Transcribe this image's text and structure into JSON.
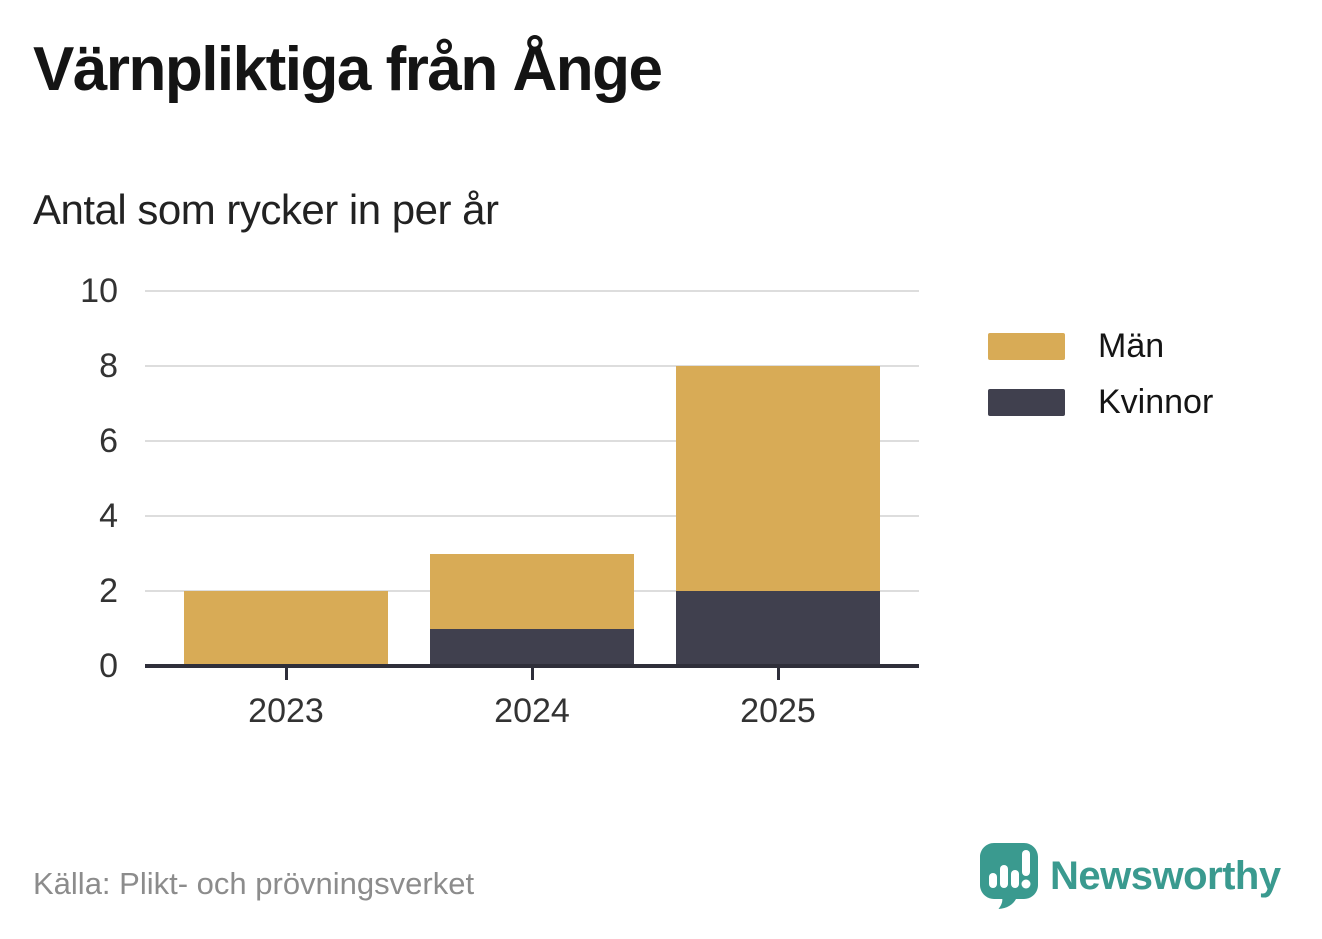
{
  "chart_data": {
    "type": "bar",
    "stacked": true,
    "title": "Värnpliktiga från Ånge",
    "subtitle": "Antal som rycker in per år",
    "categories": [
      "2023",
      "2024",
      "2025"
    ],
    "series": [
      {
        "name": "Män",
        "values": [
          2,
          2,
          6
        ],
        "color": "#D8AB56"
      },
      {
        "name": "Kvinnor",
        "values": [
          0,
          1,
          2
        ],
        "color": "#40404E"
      }
    ],
    "totals": [
      2,
      3,
      8
    ],
    "xlabel": "",
    "ylabel": "",
    "yticks": [
      0,
      2,
      4,
      6,
      8,
      10
    ],
    "ylim": [
      0,
      10
    ],
    "grid": true,
    "legend_position": "right"
  },
  "colors": {
    "axis": "#2F2F3A",
    "gridline": "#DDDDDD",
    "tick_label": "#333333",
    "source_text": "#8C8C8C",
    "brand": "#3A9A8F"
  },
  "footer": {
    "source": "Källa: Plikt- och prövningsverket",
    "brand": "Newsworthy"
  }
}
